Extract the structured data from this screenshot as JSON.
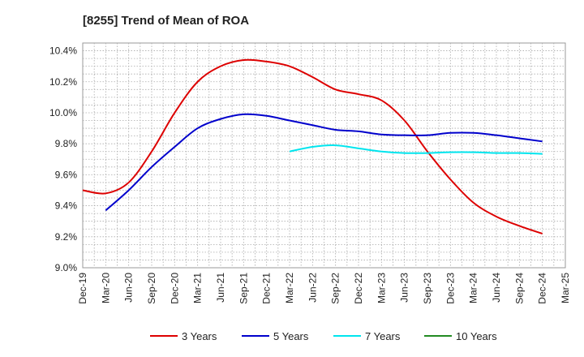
{
  "chart_data": {
    "type": "line",
    "title": "[8255]  Trend of Mean of ROA",
    "xlabel": "",
    "ylabel": "",
    "ylim": [
      9.0,
      10.45
    ],
    "y_ticks": [
      "9.0%",
      "9.2%",
      "9.4%",
      "9.6%",
      "9.8%",
      "10.0%",
      "10.2%",
      "10.4%"
    ],
    "y_tick_values": [
      9.0,
      9.2,
      9.4,
      9.6,
      9.8,
      10.0,
      10.2,
      10.4
    ],
    "x_ticks": [
      "Dec-19",
      "Mar-20",
      "Jun-20",
      "Sep-20",
      "Dec-20",
      "Mar-21",
      "Jun-21",
      "Sep-21",
      "Dec-21",
      "Mar-22",
      "Jun-22",
      "Sep-22",
      "Dec-22",
      "Mar-23",
      "Jun-23",
      "Sep-23",
      "Dec-23",
      "Mar-24",
      "Jun-24",
      "Sep-24",
      "Dec-24",
      "Mar-25"
    ],
    "grid": true,
    "legend_position": "bottom",
    "series": [
      {
        "name": "3 Years",
        "color": "#dd0000",
        "start_index": 0,
        "values": [
          9.5,
          9.48,
          9.55,
          9.75,
          10.0,
          10.2,
          10.3,
          10.34,
          10.33,
          10.3,
          10.23,
          10.15,
          10.12,
          10.08,
          9.95,
          9.75,
          9.57,
          9.42,
          9.33,
          9.27,
          9.22
        ]
      },
      {
        "name": "5 Years",
        "color": "#0000cc",
        "start_index": 1,
        "values": [
          9.37,
          9.5,
          9.65,
          9.78,
          9.9,
          9.96,
          9.99,
          9.98,
          9.95,
          9.92,
          9.89,
          9.88,
          9.86,
          9.855,
          9.855,
          9.87,
          9.87,
          9.855,
          9.835,
          9.815
        ]
      },
      {
        "name": "7 Years",
        "color": "#00e5ee",
        "start_index": 9,
        "values": [
          9.75,
          9.78,
          9.79,
          9.77,
          9.75,
          9.74,
          9.74,
          9.745,
          9.745,
          9.74,
          9.74,
          9.735
        ]
      },
      {
        "name": "10 Years",
        "color": "#228b22",
        "start_index": 0,
        "values": []
      }
    ]
  }
}
